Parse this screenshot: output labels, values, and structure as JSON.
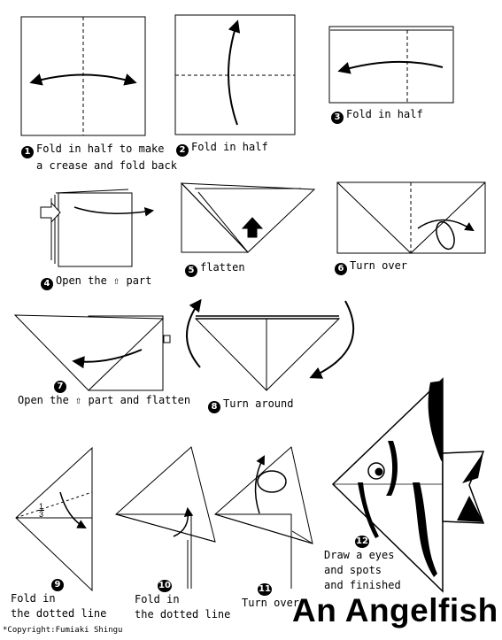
{
  "steps": [
    {
      "num": "1",
      "lines": [
        "Fold in half to make",
        "a crease and fold back"
      ]
    },
    {
      "num": "2",
      "lines": [
        "Fold in half"
      ]
    },
    {
      "num": "3",
      "lines": [
        "Fold in half"
      ]
    },
    {
      "num": "4",
      "lines": [
        "Open the ⇧ part"
      ]
    },
    {
      "num": "5",
      "lines": [
        "flatten"
      ]
    },
    {
      "num": "6",
      "lines": [
        "Turn over"
      ]
    },
    {
      "num": "7",
      "lines": [
        "Open the ⇧ part and flatten"
      ]
    },
    {
      "num": "8",
      "lines": [
        "Turn around"
      ]
    },
    {
      "num": "9",
      "lines": [
        "Fold in",
        "the dotted line"
      ]
    },
    {
      "num": "10",
      "lines": [
        "Fold in",
        "the dotted line"
      ]
    },
    {
      "num": "11",
      "lines": [
        "Turn over"
      ]
    },
    {
      "num": "12",
      "lines": [
        "Draw a eyes",
        "and spots",
        "and finished"
      ]
    }
  ],
  "fraction": {
    "numerator": "1",
    "denominator": "3"
  },
  "title": "An Angelfish",
  "copyright": "*Copyright:Fumiaki Shingu"
}
